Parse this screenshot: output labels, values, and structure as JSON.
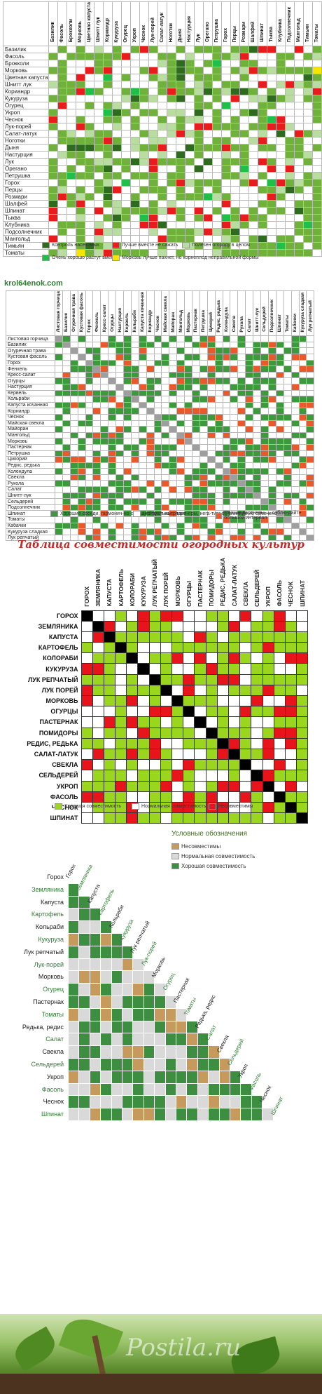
{
  "panel1": {
    "columns": [
      "Базилик",
      "Фасоль",
      "Брокколи",
      "Морковь",
      "Цветная капуста",
      "Шнитт лук",
      "Кориандр",
      "Кукуруза",
      "Огурец",
      "Укроп",
      "Чеснок",
      "Лук-порей",
      "Салат-латук",
      "Ноготки",
      "Дыня",
      "Настурция",
      "Лук",
      "Орегано",
      "Петрушка",
      "Горох",
      "Перцы",
      "Розмари",
      "Шалфей",
      "Шпинат",
      "Тыква",
      "Клубника",
      "Подсолнечник",
      "Мангольд",
      "Тимьян",
      "Томаты"
    ],
    "rows": [
      "Базилик",
      "Фасоль",
      "Брокколи",
      "Морковь",
      "Цветная капуста",
      "Шнитт лук",
      "Кориандр",
      "Кукуруза",
      "Огурец",
      "Укроп",
      "Чеснок",
      "Лук-порей",
      "Салат-латук",
      "Ноготки",
      "Дыня",
      "Настурция",
      "Лук",
      "Орегано",
      "Петрушка",
      "Горох",
      "Перцы",
      "Розмари",
      "Шалфей",
      "Шпинат",
      "Тыква",
      "Клубника",
      "Подсолнечник",
      "Мангольд",
      "Тимьян",
      "Томаты"
    ],
    "legend": [
      {
        "color": "#2e6b1f",
        "label": "Контроль насекомых"
      },
      {
        "color": "#e81c1c",
        "label": "Лучше вместе не сажать"
      },
      {
        "color": "#b9dca0",
        "label": "Полезен огороду в целом"
      },
      {
        "color": "#1fbf4a",
        "label": "Очень хорошо растут вместе"
      },
      {
        "color": "#f5e600",
        "label": "Морковь лучше пахнет, но корнеплод неправильной формы"
      }
    ]
  },
  "site_label": "krol64enok.com",
  "panel2": {
    "columns": [
      "Листовая горчица",
      "Базилик",
      "Огуречная трава",
      "Кустовая фасоль",
      "Горох",
      "Фенхель",
      "Кресс-салат",
      "Огурцы",
      "Настурция",
      "Кервель",
      "Кольраби",
      "Капуста кочанная",
      "Кориандр",
      "Чеснок",
      "Майская свекла",
      "Майоран",
      "Мангольд",
      "Морковь",
      "Пастернак",
      "Петрушка",
      "Цикорий",
      "Редис, редька",
      "Колендула",
      "Свекла",
      "Рукола",
      "Салат",
      "Шнитт-лук",
      "Сельдерей",
      "Подсолнечник",
      "Шпинат",
      "Томаты",
      "Кабачки",
      "Кукуруза сладкая",
      "Лук репчатый"
    ],
    "rows": [
      "Листовая горчица",
      "Базилик",
      "Огуречная трава",
      "Кустовая фасоль",
      "Горох",
      "Фенхель",
      "Кресс-салат",
      "Огурцы",
      "Настурция",
      "Кервель",
      "Кольраби",
      "Капуста кочанная",
      "Кориандр",
      "Чеснок",
      "Майская свекла",
      "Майоран",
      "Мангольд",
      "Морковь",
      "Пастернак",
      "Петрушка",
      "Цикорий",
      "Редис, редька",
      "Колендула",
      "Свекла",
      "Рукола",
      "Салат",
      "Шнитт-лук",
      "Сельдерей",
      "Подсолнечник",
      "Шпинат",
      "Томаты",
      "Кабачки",
      "Кукуруза сладкая",
      "Лук репчатый"
    ],
    "legend": [
      {
        "color": "#3c9a3c",
        "label": "Хорошие соседи, гармонич-но сосуществуют на грядке"
      },
      {
        "color": "#ffffff",
        "label": "Нейтральные партнеры, нега-тивное влияние не отмечено"
      },
      {
        "color": "#e85a2c",
        "label": "Плохие партнеры — соблю-дайте большой интервал"
      }
    ]
  },
  "panel3": {
    "title": "Таблица совместимости огородных культур",
    "crops": [
      "ГОРОХ",
      "ЗЕМЛЯНИКА",
      "КАПУСТА",
      "КАРТОФЕЛЬ",
      "КОЛОРАБИ",
      "КУКУРУЗА",
      "ЛУК РЕПЧАТЫЙ",
      "ЛУК ПОРЕЙ",
      "МОРКОВЬ",
      "ОГУРЦЫ",
      "ПАСТЕРНАК",
      "ПОМИДОРЫ",
      "РЕДИС, РЕДЬКА",
      "САЛАТ-ЛАТУК",
      "СВЕКЛА",
      "СЕЛЬДЕРЕЙ",
      "УКРОП",
      "ФАСОЛЬ",
      "ЧЕСНОК",
      "ШПИНАТ"
    ],
    "legend": [
      {
        "color": "#9ad61d",
        "label": "Хорошая совместимость"
      },
      {
        "color": "#ffffff",
        "label": "Нормальная совместимость"
      },
      {
        "color": "#e8141c",
        "label": "Несовместимы"
      }
    ]
  },
  "panel4": {
    "legend_title": "Условные обозначения",
    "crops": [
      "Горох",
      "Земляника",
      "Капуста",
      "Картофель",
      "Кольраби",
      "Кукуруза",
      "Лук репчатый",
      "Лук-порей",
      "Морковь",
      "Огурец",
      "Пастернак",
      "Томаты",
      "Редька, редис",
      "Салат",
      "Свекла",
      "Сельдерей",
      "Укроп",
      "Фасоль",
      "Чеснок",
      "Шпинат"
    ],
    "green_crops": [
      "Земляника",
      "Картофель",
      "Кукуруза",
      "Лук-порей",
      "Огурец",
      "Томаты",
      "Салат",
      "Сельдерей",
      "Фасоль",
      "Шпинат"
    ],
    "legend": [
      {
        "color": "#c59a5c",
        "label": "Несовместимы"
      },
      {
        "color": "#d9d9d9",
        "label": "Нормальная совместимость"
      },
      {
        "color": "#3e8e41",
        "label": "Хорошая совместимость"
      }
    ]
  },
  "colors": {
    "p1_green": "#6fb13a",
    "p1_light": "#b9dca0",
    "p1_red": "#e81c1c",
    "p1_dark": "#2e6b1f",
    "p1_bright": "#1fbf4a",
    "p1_yellow": "#f5e600",
    "p2_green": "#3c9a3c",
    "p2_red": "#e85a2c",
    "p3_green": "#9ad61d",
    "p3_red": "#e8141c",
    "p4_green": "#3e8e41",
    "p4_tan": "#c59a5c",
    "p4_gray": "#d9d9d9"
  },
  "watermark": "Postila.ru"
}
